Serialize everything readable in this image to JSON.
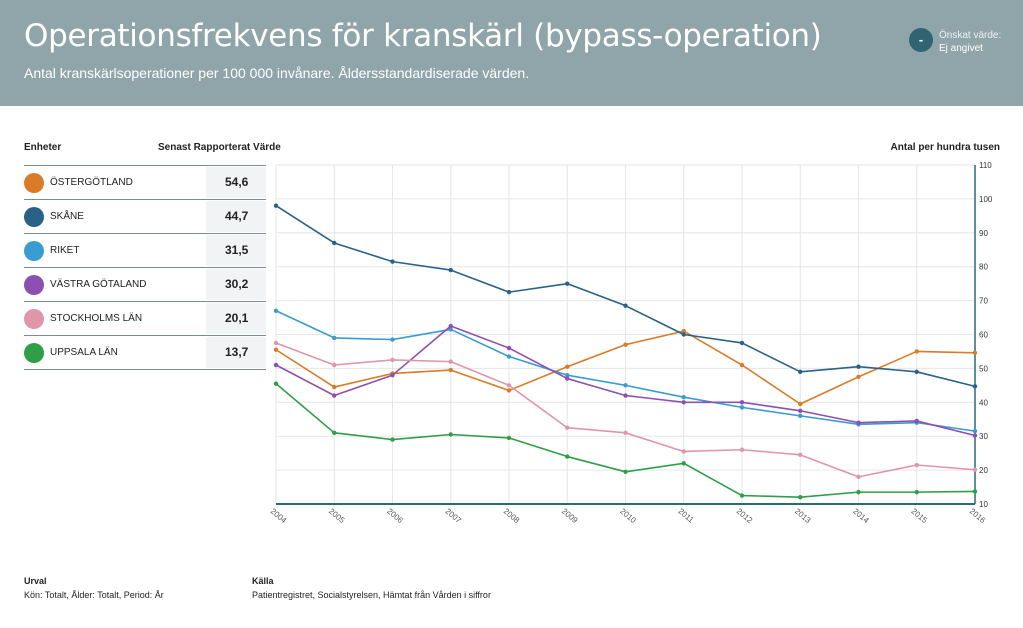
{
  "header": {
    "title": "Operationsfrekvens för kranskärl (bypass-operation)",
    "subtitle": "Antal kranskärlsoperationer per 100 000 invånare. Åldersstandardiserade värden.",
    "target_symbol": "-",
    "target_label": "Önskat värde:",
    "target_value": "Ej angivet"
  },
  "legend": {
    "units_header": "Enheter",
    "value_header": "Senast Rapporterat Värde",
    "items": [
      {
        "name": "ÖSTERGÖTLAND",
        "value": "54,6",
        "color": "#d97b27"
      },
      {
        "name": "SKÅNE",
        "value": "44,7",
        "color": "#2a6287"
      },
      {
        "name": "RIKET",
        "value": "31,5",
        "color": "#3a9bd1"
      },
      {
        "name": "VÄSTRA GÖTALAND",
        "value": "30,2",
        "color": "#8d4fb0"
      },
      {
        "name": "STOCKHOLMS LÄN",
        "value": "20,1",
        "color": "#e095aa"
      },
      {
        "name": "UPPSALA LÄN",
        "value": "13,7",
        "color": "#2e9e47"
      }
    ]
  },
  "chart_data": {
    "type": "line",
    "ylabel": "Antal per hundra tusen",
    "ylim": [
      10,
      110
    ],
    "yticks": [
      10,
      20,
      30,
      40,
      50,
      60,
      70,
      80,
      90,
      100,
      110
    ],
    "x": [
      "2004",
      "2005",
      "2006",
      "2007",
      "2008",
      "2009",
      "2010",
      "2011",
      "2012",
      "2013",
      "2014",
      "2015",
      "2016"
    ],
    "grid": true,
    "series": [
      {
        "name": "ÖSTERGÖTLAND",
        "color": "#d97b27",
        "values": [
          55.5,
          44.5,
          48.5,
          49.5,
          43.5,
          50.5,
          57.0,
          61.0,
          51.0,
          39.5,
          47.5,
          55.0,
          54.6
        ]
      },
      {
        "name": "SKÅNE",
        "color": "#2a6287",
        "values": [
          98.0,
          87.0,
          81.5,
          79.0,
          72.5,
          75.0,
          68.5,
          60.0,
          57.5,
          49.0,
          50.5,
          49.0,
          44.7
        ]
      },
      {
        "name": "RIKET",
        "color": "#3a9bd1",
        "values": [
          67.0,
          59.0,
          58.5,
          61.5,
          53.5,
          48.0,
          45.0,
          41.5,
          38.5,
          36.0,
          33.5,
          34.0,
          31.5
        ]
      },
      {
        "name": "VÄSTRA GÖTALAND",
        "color": "#8d4fb0",
        "values": [
          51.0,
          42.0,
          48.0,
          62.5,
          56.0,
          47.0,
          42.0,
          40.0,
          40.0,
          37.5,
          34.0,
          34.5,
          30.2
        ]
      },
      {
        "name": "STOCKHOLMS LÄN",
        "color": "#e095aa",
        "values": [
          57.5,
          51.0,
          52.5,
          52.0,
          45.0,
          32.5,
          31.0,
          25.5,
          26.0,
          24.5,
          18.0,
          21.5,
          20.1
        ]
      },
      {
        "name": "UPPSALA LÄN",
        "color": "#2e9e47",
        "values": [
          45.5,
          31.0,
          29.0,
          30.5,
          29.5,
          24.0,
          19.5,
          22.0,
          12.5,
          12.0,
          13.5,
          13.5,
          13.7
        ]
      }
    ]
  },
  "footer": {
    "selection_label": "Urval",
    "selection_text": "Kön: Totalt, Ålder: Totalt, Period: År",
    "source_label": "Källa",
    "source_text": "Patientregistret, Socialstyrelsen, Hämtat från Vården i siffror"
  }
}
